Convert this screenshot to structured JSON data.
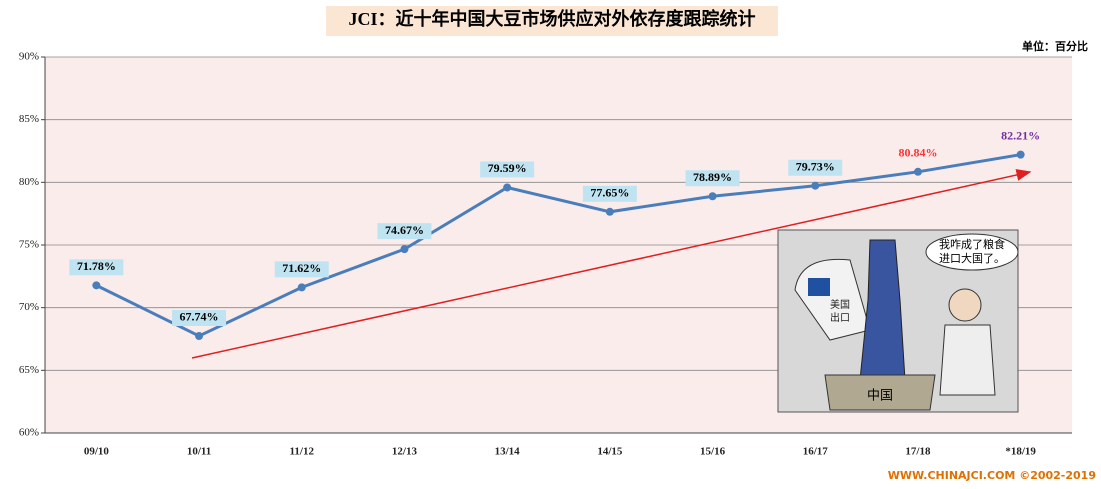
{
  "chart_data": {
    "type": "line",
    "title": "JCI：近十年中国大豆市场供应对外依存度跟踪统计",
    "unit_label": "单位：百分比",
    "footer": "WWW.CHINAJCI.COM ©2002-2019",
    "categories": [
      "09/10",
      "10/11",
      "11/12",
      "12/13",
      "13/14",
      "14/15",
      "15/16",
      "16/17",
      "17/18",
      "*18/19"
    ],
    "series": [
      {
        "color": "#4a7ebb",
        "values": [
          71.78,
          67.74,
          71.62,
          74.67,
          79.59,
          77.65,
          78.89,
          79.73,
          80.84,
          82.21
        ],
        "value_labels": [
          "71.78%",
          "67.74%",
          "71.62%",
          "74.67%",
          "79.59%",
          "77.65%",
          "78.89%",
          "79.73%",
          "80.84%",
          "82.21%"
        ],
        "value_label_colors": [
          "#000000",
          "#000000",
          "#000000",
          "#000000",
          "#000000",
          "#000000",
          "#000000",
          "#000000",
          "#ff3333",
          "#7030a0"
        ],
        "value_label_boxes": [
          true,
          true,
          true,
          true,
          true,
          true,
          true,
          true,
          false,
          false
        ]
      }
    ],
    "ylim": [
      60,
      90
    ],
    "yticks": [
      {
        "value": 60,
        "label": "60%"
      },
      {
        "value": 65,
        "label": "65%"
      },
      {
        "value": 70,
        "label": "70%"
      },
      {
        "value": 75,
        "label": "75%"
      },
      {
        "value": 80,
        "label": "80%"
      },
      {
        "value": 85,
        "label": "85%"
      },
      {
        "value": 90,
        "label": "90%"
      }
    ],
    "grid": true,
    "cartoon_texts": {
      "speech": [
        "我咋成了粮食",
        "进口大国了。"
      ],
      "bag": [
        "美国",
        "出口"
      ],
      "box": "中国"
    }
  }
}
